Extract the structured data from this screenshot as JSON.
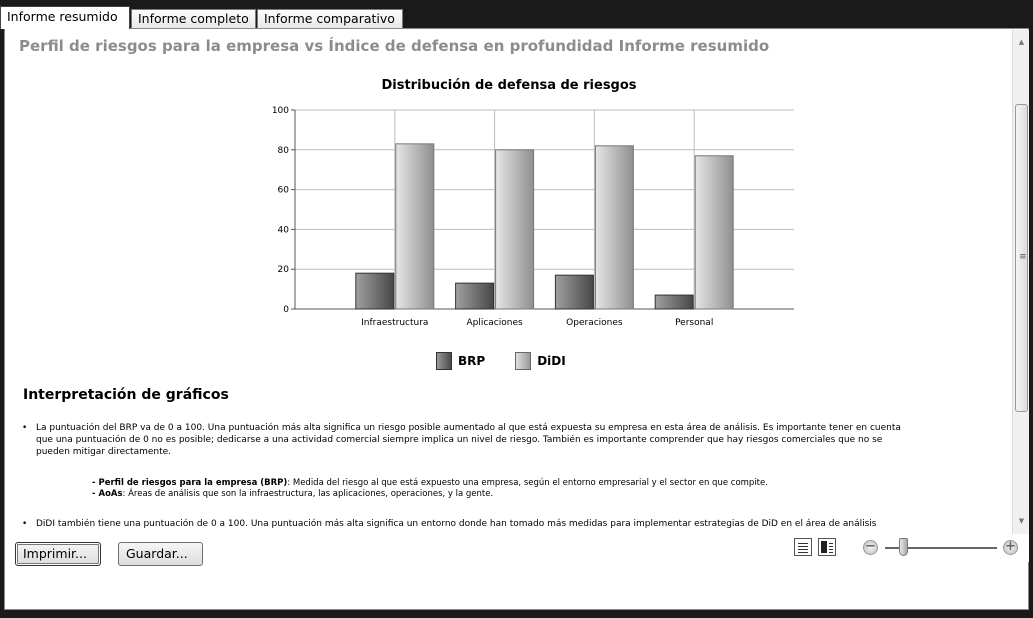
{
  "tabs": [
    {
      "label": "Informe resumido",
      "active": true
    },
    {
      "label": "Informe completo",
      "active": false
    },
    {
      "label": "Informe comparativo",
      "active": false
    }
  ],
  "report": {
    "title": "Perfil de riesgos para la empresa vs Índice de defensa en profundidad Informe resumido"
  },
  "chart_data": {
    "type": "bar",
    "title": "Distribución de defensa de riesgos",
    "categories": [
      "Infraestructura",
      "Aplicaciones",
      "Operaciones",
      "Personal"
    ],
    "series": [
      {
        "name": "BRP",
        "values": [
          18,
          13,
          17,
          7
        ],
        "color": "#6a6a6a"
      },
      {
        "name": "DiDI",
        "values": [
          83,
          80,
          82,
          77
        ],
        "color": "#c4c4c4"
      }
    ],
    "ylim": [
      0,
      100
    ],
    "yticks": [
      "0",
      "20",
      "40",
      "60",
      "80",
      "100"
    ],
    "grid": true,
    "legend": "bottom"
  },
  "interpretation": {
    "title": "Interpretación de gráficos",
    "bullet1_line1": "La puntuación del BRP va de 0 a 100. Una puntuación más alta significa un riesgo posible aumentado al que está expuesta su empresa en esta área de análisis. Es importante tener en cuenta",
    "bullet1_line2": "que una puntuación de 0 no es posible; dedicarse a una actividad comercial siempre implica un nivel de riesgo. También es importante comprender que hay riesgos comerciales que no se",
    "bullet1_line3": "pueden mitigar directamente.",
    "sub1_term": "- Perfil de riesgos para la empresa (BRP)",
    "sub1_text": ": Medida del riesgo al que está expuesto una empresa, según el entorno empresarial y el sector en que compite.",
    "sub2_term": "- AoAs",
    "sub2_text": ": Áreas de análisis que son la infraestructura, las aplicaciones, operaciones, y la gente.",
    "bullet2_line1": "DiDI también tiene una puntuación de 0 a 100. Una puntuación más alta significa un entorno donde han tomado más medidas para implementar estrategias de DiD en el área de análisis"
  },
  "buttons": {
    "print": "Imprimir...",
    "save": "Guardar..."
  },
  "zoom": {
    "level": 0.1
  }
}
